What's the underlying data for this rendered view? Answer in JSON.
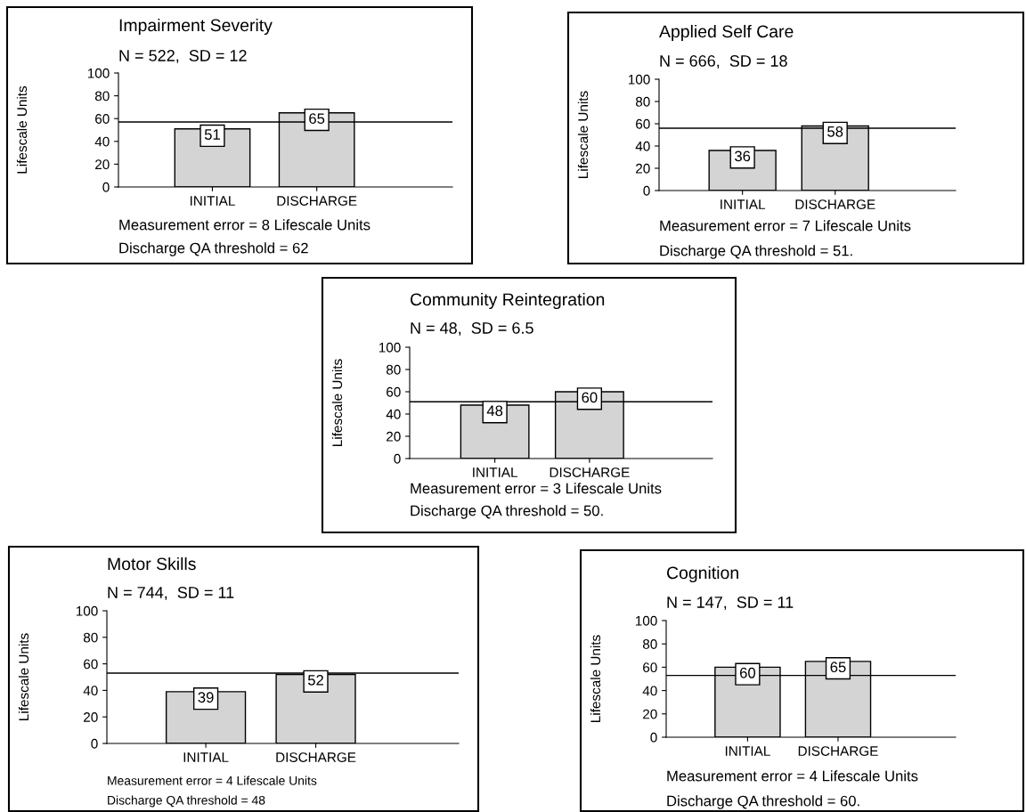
{
  "chart_data": [
    {
      "type": "bar",
      "title": "Impairment Severity",
      "subtitle": "N = 522,  SD = 12",
      "ylabel": "Lifescale Units",
      "categories": [
        "INITIAL",
        "DISCHARGE"
      ],
      "values": [
        51,
        65
      ],
      "color": "#d4d4d4",
      "ylim": [
        0,
        100
      ],
      "yticks": [
        0,
        20,
        40,
        60,
        80,
        100
      ],
      "data_labels": true,
      "ref_lines": [
        {
          "axis": "y",
          "value": 57,
          "color": "#000000"
        }
      ],
      "annotations": [
        "Measurement error = 8 Lifescale Units",
        "Discharge QA threshold = 62"
      ],
      "grid": false
    },
    {
      "type": "bar",
      "title": "Applied Self Care",
      "subtitle": "N = 666,  SD = 18",
      "ylabel": "Lifescale Units",
      "categories": [
        "INITIAL",
        "DISCHARGE"
      ],
      "values": [
        36,
        58
      ],
      "color": "#d4d4d4",
      "ylim": [
        0,
        100
      ],
      "yticks": [
        0,
        20,
        40,
        60,
        80,
        100
      ],
      "data_labels": true,
      "ref_lines": [
        {
          "axis": "y",
          "value": 56,
          "color": "#000000"
        }
      ],
      "annotations": [
        "Measurement error = 7 Lifescale Units",
        "Discharge QA threshold = 51."
      ],
      "grid": false
    },
    {
      "type": "bar",
      "title": "Community Reintegration",
      "subtitle": "N = 48,  SD = 6.5",
      "ylabel": "Lifescale Units",
      "categories": [
        "INITIAL",
        "DISCHARGE"
      ],
      "values": [
        48,
        60
      ],
      "color": "#d4d4d4",
      "ylim": [
        0,
        100
      ],
      "yticks": [
        0,
        20,
        40,
        60,
        80,
        100
      ],
      "data_labels": true,
      "ref_lines": [
        {
          "axis": "y",
          "value": 51,
          "color": "#000000"
        }
      ],
      "annotations": [
        "Measurement error = 3 Lifescale Units",
        "Discharge QA threshold = 50."
      ],
      "grid": false
    },
    {
      "type": "bar",
      "title": "Motor Skills",
      "subtitle": "N = 744,  SD = 11",
      "ylabel": "Lifescale Units",
      "categories": [
        "INITIAL",
        "DISCHARGE"
      ],
      "values": [
        39,
        52
      ],
      "color": "#d4d4d4",
      "ylim": [
        0,
        100
      ],
      "yticks": [
        0,
        20,
        40,
        60,
        80,
        100
      ],
      "data_labels": true,
      "ref_lines": [
        {
          "axis": "y",
          "value": 53,
          "color": "#000000"
        }
      ],
      "annotations": [
        "Measurement error = 4 Lifescale Units",
        "Discharge QA threshold = 48"
      ],
      "grid": false
    },
    {
      "type": "bar",
      "title": "Cognition",
      "subtitle": "N = 147,  SD = 11",
      "ylabel": "Lifescale Units",
      "categories": [
        "INITIAL",
        "DISCHARGE"
      ],
      "values": [
        60,
        65
      ],
      "color": "#d4d4d4",
      "ylim": [
        0,
        100
      ],
      "yticks": [
        0,
        20,
        40,
        60,
        80,
        100
      ],
      "data_labels": true,
      "ref_lines": [
        {
          "axis": "y",
          "value": 53,
          "color": "#000000"
        }
      ],
      "annotations": [
        "Measurement error = 4 Lifescale Units",
        "Discharge QA threshold = 60."
      ],
      "grid": false
    }
  ]
}
